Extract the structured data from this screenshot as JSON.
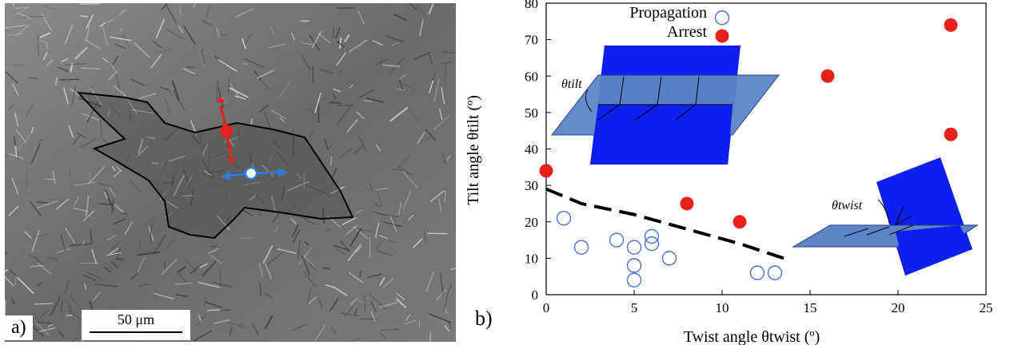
{
  "panel_a": {
    "label": "a)",
    "scale_bar": "50 μm"
  },
  "panel_b": {
    "label": "b)"
  },
  "chart_data": {
    "type": "scatter",
    "xlabel": "Twist angle θtwist (º)",
    "ylabel": "Tilt angle θtilt (º)",
    "xlim": [
      0,
      25
    ],
    "ylim": [
      0,
      80
    ],
    "xticks": [
      "0",
      "5",
      "10",
      "15",
      "20",
      "25"
    ],
    "yticks": [
      "0",
      "10",
      "20",
      "30",
      "40",
      "50",
      "60",
      "70",
      "80"
    ],
    "legend_position": "top-left",
    "series": [
      {
        "name": "Propagation",
        "marker": "open-circle",
        "color": "#4a6fe0",
        "points": [
          [
            1,
            21
          ],
          [
            2,
            13
          ],
          [
            4,
            15
          ],
          [
            5,
            13
          ],
          [
            5,
            8
          ],
          [
            5,
            4
          ],
          [
            6,
            16
          ],
          [
            6,
            14
          ],
          [
            7,
            10
          ],
          [
            12,
            6
          ],
          [
            13,
            6
          ],
          [
            10,
            76
          ]
        ]
      },
      {
        "name": "Arrest",
        "marker": "filled-circle",
        "color": "#e8201c",
        "points": [
          [
            0,
            34
          ],
          [
            8,
            25
          ],
          [
            10,
            71
          ],
          [
            11,
            20
          ],
          [
            16,
            60
          ],
          [
            23,
            74
          ],
          [
            23,
            44
          ]
        ]
      }
    ],
    "dashed_boundary": [
      [
        0,
        29
      ],
      [
        2,
        25
      ],
      [
        5,
        22
      ],
      [
        8,
        18
      ],
      [
        11,
        14
      ],
      [
        13.5,
        10
      ]
    ],
    "inset_labels": {
      "tilt": "θtilt",
      "twist": "θtwist"
    }
  }
}
